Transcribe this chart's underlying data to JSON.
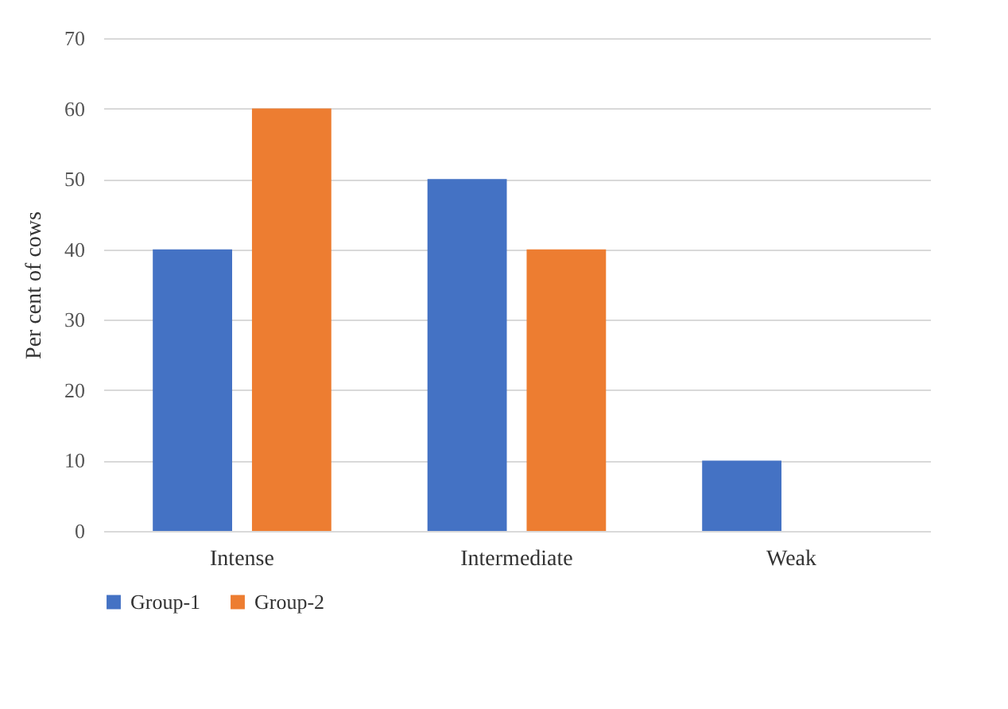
{
  "chart_data": {
    "type": "bar",
    "ylabel": "Per cent of cows",
    "categories": [
      "Intense",
      "Intermediate",
      "Weak"
    ],
    "series": [
      {
        "name": "Group-1",
        "color": "#4472c4",
        "values": [
          40,
          50,
          10
        ]
      },
      {
        "name": "Group-2",
        "color": "#ed7d31",
        "values": [
          60,
          40,
          0
        ]
      }
    ],
    "ylim": [
      0,
      70
    ],
    "yticks": [
      0,
      10,
      20,
      30,
      40,
      50,
      60,
      70
    ],
    "grid": "y",
    "legend": "bottom"
  }
}
